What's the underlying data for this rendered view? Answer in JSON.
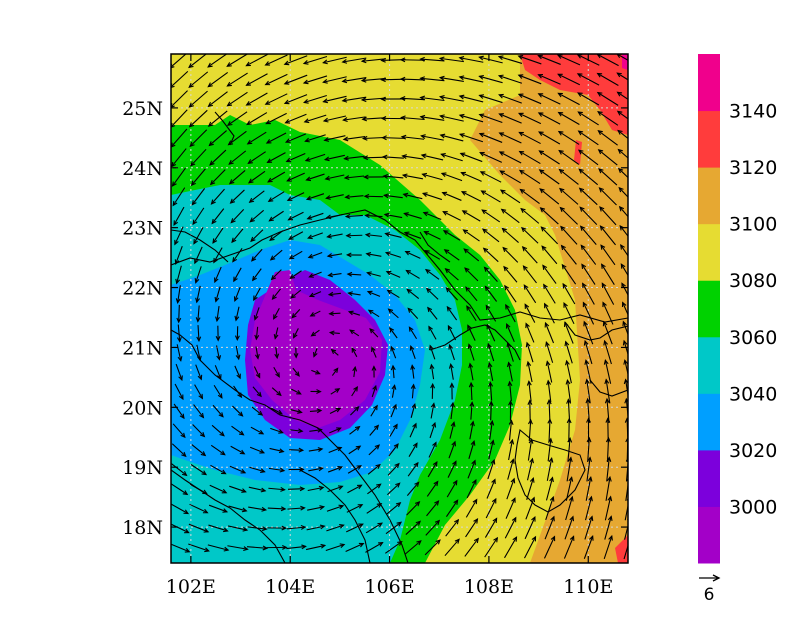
{
  "map": {
    "lat_labels": [
      "25N",
      "24N",
      "23N",
      "22N",
      "21N",
      "20N",
      "19N",
      "18N"
    ],
    "lon_labels": [
      "102E",
      "104E",
      "106E",
      "108E",
      "110E"
    ],
    "lat_values": [
      25,
      24,
      23,
      22,
      21,
      20,
      19,
      18
    ],
    "lon_values": [
      102,
      104,
      106,
      108,
      110
    ],
    "extent": {
      "lon_min": 101.6,
      "lon_max": 110.8,
      "lat_min": 17.4,
      "lat_max": 25.9
    },
    "cyclone_center": {
      "lon": 104.7,
      "lat": 20.8
    },
    "gridlines": "dotted"
  },
  "colorbar": {
    "labels": [
      "3140",
      "3120",
      "3100",
      "3080",
      "3060",
      "3040",
      "3020",
      "3000"
    ],
    "levels": [
      3000,
      3020,
      3040,
      3060,
      3080,
      3100,
      3120,
      3140
    ],
    "colors": [
      "#a300c8",
      "#7c00dc",
      "#009fff",
      "#00c8c8",
      "#00d200",
      "#e6dc32",
      "#e6a832",
      "#ff3c3c",
      "#f0008c"
    ]
  },
  "vector_reference": {
    "label": "6"
  }
}
